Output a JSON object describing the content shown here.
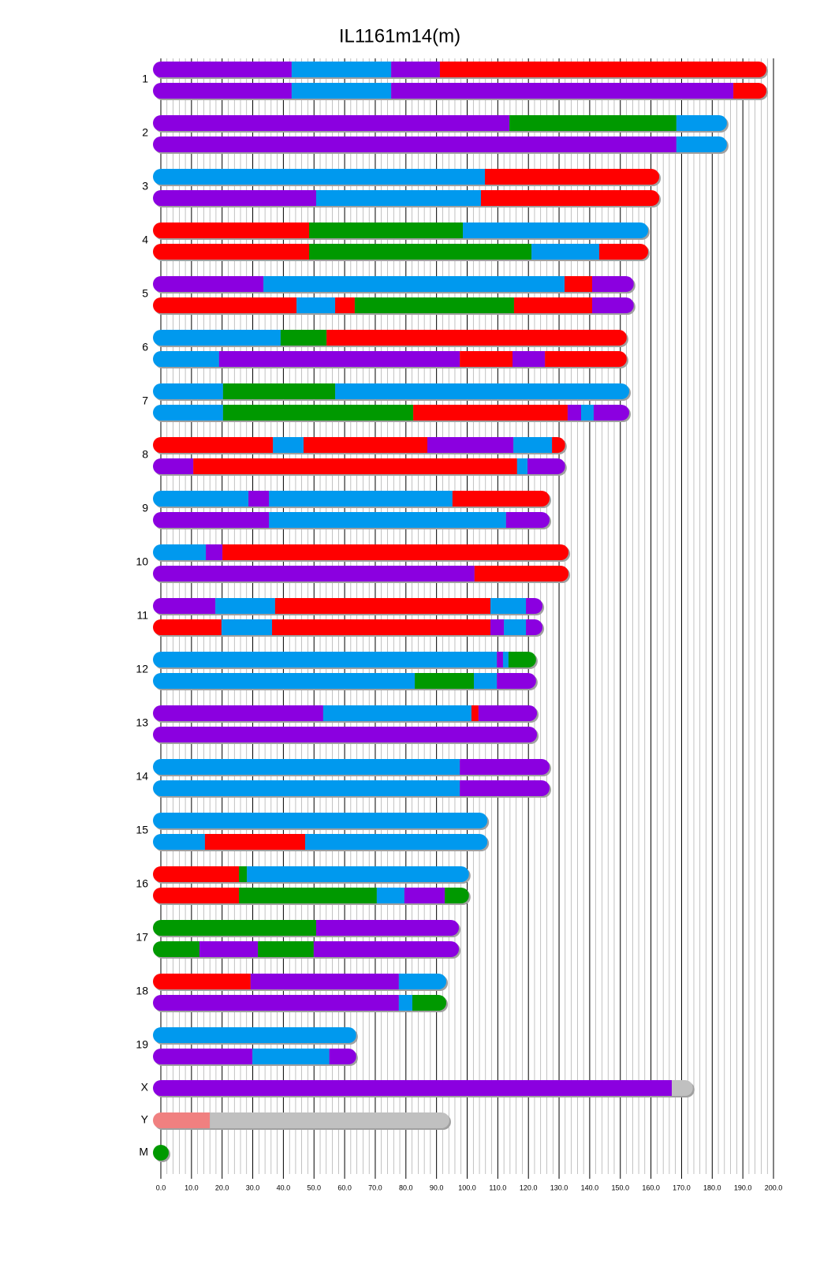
{
  "chart_data": {
    "type": "chromosome",
    "title": "IL1161m14(m)",
    "xlim": [
      0,
      200
    ],
    "xticks": [
      {
        "value": 0,
        "label": "0.0"
      },
      {
        "value": 10,
        "label": "10.0"
      },
      {
        "value": 20,
        "label": "20.0"
      },
      {
        "value": 30,
        "label": "30.0"
      },
      {
        "value": 40,
        "label": "40.0"
      },
      {
        "value": 50,
        "label": "50.0"
      },
      {
        "value": 60,
        "label": "60.0"
      },
      {
        "value": 70,
        "label": "70.0"
      },
      {
        "value": 80,
        "label": "80.0"
      },
      {
        "value": 90,
        "label": "90.0"
      },
      {
        "value": 100,
        "label": "100.0"
      },
      {
        "value": 110,
        "label": "110.0"
      },
      {
        "value": 120,
        "label": "120.0"
      },
      {
        "value": 130,
        "label": "130.0"
      },
      {
        "value": 140,
        "label": "140.0"
      },
      {
        "value": 150,
        "label": "150.0"
      },
      {
        "value": 160,
        "label": "160.0"
      },
      {
        "value": 170,
        "label": "170.0"
      },
      {
        "value": 180,
        "label": "180.0"
      },
      {
        "value": 190,
        "label": "190.0"
      },
      {
        "value": 200,
        "label": "200.0"
      }
    ],
    "grid": true,
    "chromosomes": [
      {
        "label": "1",
        "haplotypes": [
          [
            {
              "start": 0,
              "end": 42.7,
              "color": "#8b00e0"
            },
            {
              "start": 42.7,
              "end": 75.2,
              "color": "#0099ee"
            },
            {
              "start": 75.2,
              "end": 91.1,
              "color": "#8b00e0"
            },
            {
              "start": 91.1,
              "end": 197.7,
              "color": "#ff0000"
            }
          ],
          [
            {
              "start": 0,
              "end": 42.7,
              "color": "#8b00e0"
            },
            {
              "start": 42.7,
              "end": 75.2,
              "color": "#0099ee"
            },
            {
              "start": 75.2,
              "end": 186.9,
              "color": "#8b00e0"
            },
            {
              "start": 186.9,
              "end": 197.7,
              "color": "#ff0000"
            }
          ]
        ]
      },
      {
        "label": "2",
        "haplotypes": [
          [
            {
              "start": 0,
              "end": 113.8,
              "color": "#8b00e0"
            },
            {
              "start": 113.8,
              "end": 168.3,
              "color": "#009900"
            },
            {
              "start": 168.3,
              "end": 184.8,
              "color": "#0099ee"
            }
          ],
          [
            {
              "start": 0,
              "end": 168.3,
              "color": "#8b00e0"
            },
            {
              "start": 168.3,
              "end": 184.8,
              "color": "#0099ee"
            }
          ]
        ]
      },
      {
        "label": "3",
        "haplotypes": [
          [
            {
              "start": 0,
              "end": 105.8,
              "color": "#0099ee"
            },
            {
              "start": 105.8,
              "end": 162.7,
              "color": "#ff0000"
            }
          ],
          [
            {
              "start": 0,
              "end": 50.7,
              "color": "#8b00e0"
            },
            {
              "start": 50.7,
              "end": 104.5,
              "color": "#0099ee"
            },
            {
              "start": 104.5,
              "end": 162.7,
              "color": "#ff0000"
            }
          ]
        ]
      },
      {
        "label": "4",
        "haplotypes": [
          [
            {
              "start": 0,
              "end": 48.4,
              "color": "#ff0000"
            },
            {
              "start": 48.4,
              "end": 98.6,
              "color": "#009900"
            },
            {
              "start": 98.6,
              "end": 159.1,
              "color": "#0099ee"
            }
          ],
          [
            {
              "start": 0,
              "end": 48.4,
              "color": "#ff0000"
            },
            {
              "start": 48.4,
              "end": 121,
              "color": "#009900"
            },
            {
              "start": 121,
              "end": 143.1,
              "color": "#0099ee"
            },
            {
              "start": 143.1,
              "end": 159.1,
              "color": "#ff0000"
            }
          ]
        ]
      },
      {
        "label": "5",
        "haplotypes": [
          [
            {
              "start": 0,
              "end": 33.5,
              "color": "#8b00e0"
            },
            {
              "start": 33.5,
              "end": 131.8,
              "color": "#0099ee"
            },
            {
              "start": 131.8,
              "end": 140.8,
              "color": "#ff0000"
            },
            {
              "start": 140.8,
              "end": 154.4,
              "color": "#8b00e0"
            }
          ],
          [
            {
              "start": 0,
              "end": 44.3,
              "color": "#ff0000"
            },
            {
              "start": 44.3,
              "end": 56.9,
              "color": "#0099ee"
            },
            {
              "start": 56.9,
              "end": 63.3,
              "color": "#ff0000"
            },
            {
              "start": 63.3,
              "end": 115.3,
              "color": "#009900"
            },
            {
              "start": 115.3,
              "end": 140.8,
              "color": "#ff0000"
            },
            {
              "start": 140.8,
              "end": 154.4,
              "color": "#8b00e0"
            }
          ]
        ]
      },
      {
        "label": "6",
        "haplotypes": [
          [
            {
              "start": 0,
              "end": 39.1,
              "color": "#0099ee"
            },
            {
              "start": 39.1,
              "end": 54.1,
              "color": "#009900"
            },
            {
              "start": 54.1,
              "end": 152.1,
              "color": "#ff0000"
            }
          ],
          [
            {
              "start": 0,
              "end": 19,
              "color": "#0099ee"
            },
            {
              "start": 19,
              "end": 97.6,
              "color": "#8b00e0"
            },
            {
              "start": 97.6,
              "end": 114.8,
              "color": "#ff0000"
            },
            {
              "start": 114.8,
              "end": 125.4,
              "color": "#8b00e0"
            },
            {
              "start": 125.4,
              "end": 152.1,
              "color": "#ff0000"
            }
          ]
        ]
      },
      {
        "label": "7",
        "haplotypes": [
          [
            {
              "start": 0,
              "end": 20.3,
              "color": "#0099ee"
            },
            {
              "start": 20.3,
              "end": 56.9,
              "color": "#009900"
            },
            {
              "start": 56.9,
              "end": 152.9,
              "color": "#0099ee"
            }
          ],
          [
            {
              "start": 0,
              "end": 20.3,
              "color": "#0099ee"
            },
            {
              "start": 20.3,
              "end": 82.4,
              "color": "#009900"
            },
            {
              "start": 82.4,
              "end": 132.8,
              "color": "#ff0000"
            },
            {
              "start": 132.8,
              "end": 137.2,
              "color": "#8b00e0"
            },
            {
              "start": 137.2,
              "end": 141.3,
              "color": "#0099ee"
            },
            {
              "start": 141.3,
              "end": 152.9,
              "color": "#8b00e0"
            }
          ]
        ]
      },
      {
        "label": "8",
        "haplotypes": [
          [
            {
              "start": 0,
              "end": 36.6,
              "color": "#ff0000"
            },
            {
              "start": 36.6,
              "end": 46.6,
              "color": "#0099ee"
            },
            {
              "start": 46.6,
              "end": 87,
              "color": "#ff0000"
            },
            {
              "start": 87,
              "end": 115.1,
              "color": "#8b00e0"
            },
            {
              "start": 115.1,
              "end": 127.7,
              "color": "#0099ee"
            },
            {
              "start": 127.7,
              "end": 132,
              "color": "#ff0000"
            }
          ],
          [
            {
              "start": 0,
              "end": 10.6,
              "color": "#8b00e0"
            },
            {
              "start": 10.6,
              "end": 116.3,
              "color": "#ff0000"
            },
            {
              "start": 116.3,
              "end": 119.7,
              "color": "#0099ee"
            },
            {
              "start": 119.7,
              "end": 132,
              "color": "#8b00e0"
            }
          ]
        ]
      },
      {
        "label": "9",
        "haplotypes": [
          [
            {
              "start": 0,
              "end": 28.6,
              "color": "#0099ee"
            },
            {
              "start": 28.6,
              "end": 35.3,
              "color": "#8b00e0"
            },
            {
              "start": 35.3,
              "end": 95.2,
              "color": "#0099ee"
            },
            {
              "start": 95.2,
              "end": 126.9,
              "color": "#ff0000"
            }
          ],
          [
            {
              "start": 0,
              "end": 35.3,
              "color": "#8b00e0"
            },
            {
              "start": 35.3,
              "end": 112.7,
              "color": "#0099ee"
            },
            {
              "start": 112.7,
              "end": 126.9,
              "color": "#8b00e0"
            }
          ]
        ]
      },
      {
        "label": "10",
        "haplotypes": [
          [
            {
              "start": 0,
              "end": 14.7,
              "color": "#0099ee"
            },
            {
              "start": 14.7,
              "end": 20.1,
              "color": "#8b00e0"
            },
            {
              "start": 20.1,
              "end": 133.1,
              "color": "#ff0000"
            }
          ],
          [
            {
              "start": 0,
              "end": 102.4,
              "color": "#8b00e0"
            },
            {
              "start": 102.4,
              "end": 133.1,
              "color": "#ff0000"
            }
          ]
        ]
      },
      {
        "label": "11",
        "haplotypes": [
          [
            {
              "start": 0,
              "end": 17.8,
              "color": "#8b00e0"
            },
            {
              "start": 17.8,
              "end": 37.3,
              "color": "#0099ee"
            },
            {
              "start": 37.3,
              "end": 107.6,
              "color": "#ff0000"
            },
            {
              "start": 107.6,
              "end": 119.2,
              "color": "#0099ee"
            },
            {
              "start": 119.2,
              "end": 124.6,
              "color": "#8b00e0"
            }
          ],
          [
            {
              "start": 0,
              "end": 19.8,
              "color": "#ff0000"
            },
            {
              "start": 19.8,
              "end": 36.3,
              "color": "#0099ee"
            },
            {
              "start": 36.3,
              "end": 107.6,
              "color": "#ff0000"
            },
            {
              "start": 107.6,
              "end": 112,
              "color": "#8b00e0"
            },
            {
              "start": 112,
              "end": 119.2,
              "color": "#0099ee"
            },
            {
              "start": 119.2,
              "end": 124.6,
              "color": "#8b00e0"
            }
          ]
        ]
      },
      {
        "label": "12",
        "haplotypes": [
          [
            {
              "start": 0,
              "end": 109.7,
              "color": "#0099ee"
            },
            {
              "start": 109.7,
              "end": 111.7,
              "color": "#8b00e0"
            },
            {
              "start": 111.7,
              "end": 113.5,
              "color": "#0099ee"
            },
            {
              "start": 113.5,
              "end": 122.5,
              "color": "#009900"
            }
          ],
          [
            {
              "start": 0,
              "end": 82.9,
              "color": "#0099ee"
            },
            {
              "start": 82.9,
              "end": 102.2,
              "color": "#009900"
            },
            {
              "start": 102.2,
              "end": 109.7,
              "color": "#0099ee"
            },
            {
              "start": 109.7,
              "end": 122.5,
              "color": "#8b00e0"
            }
          ]
        ]
      },
      {
        "label": "13",
        "haplotypes": [
          [
            {
              "start": 0,
              "end": 53,
              "color": "#8b00e0"
            },
            {
              "start": 53,
              "end": 101.4,
              "color": "#0099ee"
            },
            {
              "start": 101.4,
              "end": 103.7,
              "color": "#ff0000"
            },
            {
              "start": 103.7,
              "end": 122.8,
              "color": "#8b00e0"
            }
          ],
          [
            {
              "start": 0,
              "end": 122.8,
              "color": "#8b00e0"
            }
          ]
        ]
      },
      {
        "label": "14",
        "haplotypes": [
          [
            {
              "start": 0,
              "end": 97.6,
              "color": "#0099ee"
            },
            {
              "start": 97.6,
              "end": 126.9,
              "color": "#8b00e0"
            }
          ],
          [
            {
              "start": 0,
              "end": 97.6,
              "color": "#0099ee"
            },
            {
              "start": 97.6,
              "end": 126.9,
              "color": "#8b00e0"
            }
          ]
        ]
      },
      {
        "label": "15",
        "haplotypes": [
          [
            {
              "start": 0,
              "end": 106.6,
              "color": "#0099ee"
            }
          ],
          [
            {
              "start": 0,
              "end": 14.4,
              "color": "#0099ee"
            },
            {
              "start": 14.4,
              "end": 47.1,
              "color": "#ff0000"
            },
            {
              "start": 47.1,
              "end": 106.6,
              "color": "#0099ee"
            }
          ]
        ]
      },
      {
        "label": "16",
        "haplotypes": [
          [
            {
              "start": 0,
              "end": 25.5,
              "color": "#ff0000"
            },
            {
              "start": 25.5,
              "end": 28.1,
              "color": "#009900"
            },
            {
              "start": 28.1,
              "end": 100.6,
              "color": "#0099ee"
            }
          ],
          [
            {
              "start": 0,
              "end": 25.5,
              "color": "#ff0000"
            },
            {
              "start": 25.5,
              "end": 70.5,
              "color": "#009900"
            },
            {
              "start": 70.5,
              "end": 79.5,
              "color": "#0099ee"
            },
            {
              "start": 79.5,
              "end": 92.7,
              "color": "#8b00e0"
            },
            {
              "start": 92.7,
              "end": 100.6,
              "color": "#009900"
            }
          ]
        ]
      },
      {
        "label": "17",
        "haplotypes": [
          [
            {
              "start": 0,
              "end": 50.7,
              "color": "#009900"
            },
            {
              "start": 50.7,
              "end": 97.3,
              "color": "#8b00e0"
            }
          ],
          [
            {
              "start": 0,
              "end": 12.6,
              "color": "#009900"
            },
            {
              "start": 12.6,
              "end": 31.7,
              "color": "#8b00e0"
            },
            {
              "start": 31.7,
              "end": 49.9,
              "color": "#009900"
            },
            {
              "start": 49.9,
              "end": 97.3,
              "color": "#8b00e0"
            }
          ]
        ]
      },
      {
        "label": "18",
        "haplotypes": [
          [
            {
              "start": 0,
              "end": 29.3,
              "color": "#ff0000"
            },
            {
              "start": 29.3,
              "end": 77.7,
              "color": "#8b00e0"
            },
            {
              "start": 77.7,
              "end": 93.2,
              "color": "#0099ee"
            }
          ],
          [
            {
              "start": 0,
              "end": 77.7,
              "color": "#8b00e0"
            },
            {
              "start": 77.7,
              "end": 82.1,
              "color": "#0099ee"
            },
            {
              "start": 82.1,
              "end": 93.2,
              "color": "#009900"
            }
          ]
        ]
      },
      {
        "label": "19",
        "haplotypes": [
          [
            {
              "start": 0,
              "end": 63.8,
              "color": "#0099ee"
            }
          ],
          [
            {
              "start": 0,
              "end": 29.9,
              "color": "#8b00e0"
            },
            {
              "start": 29.9,
              "end": 55,
              "color": "#0099ee"
            },
            {
              "start": 55,
              "end": 63.8,
              "color": "#8b00e0"
            }
          ]
        ]
      },
      {
        "label": "X",
        "haplotypes": [
          [
            {
              "start": 0,
              "end": 166.8,
              "color": "#8b00e0"
            },
            {
              "start": 166.8,
              "end": 173.7,
              "color": "#c0c0c0"
            }
          ]
        ]
      },
      {
        "label": "Y",
        "haplotypes": [
          [
            {
              "start": 0,
              "end": 16,
              "color": "#f08080"
            },
            {
              "start": 16,
              "end": 94.2,
              "color": "#c0c0c0"
            }
          ]
        ]
      },
      {
        "label": "M",
        "haplotypes": [
          [
            {
              "start": 0,
              "end": 0.02,
              "color": "#009900"
            }
          ]
        ]
      }
    ]
  }
}
